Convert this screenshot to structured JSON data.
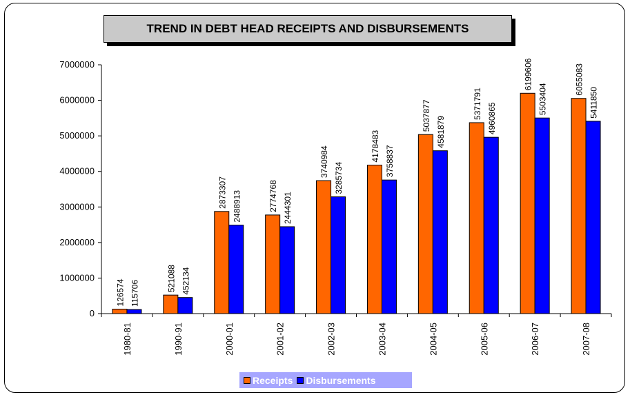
{
  "chart_data": {
    "type": "bar",
    "title": "TREND IN DEBT HEAD RECEIPTS AND DISBURSEMENTS",
    "categories": [
      "1980-81",
      "1990-91",
      "2000-01",
      "2001-02",
      "2002-03",
      "2003-04",
      "2004-05",
      "2005-06",
      "2006-07",
      "2007-08"
    ],
    "series": [
      {
        "name": "Receipts",
        "color": "#ff6600",
        "values": [
          126574,
          521088,
          2873307,
          2774768,
          3740984,
          4178483,
          5037877,
          5371791,
          6199606,
          6055083
        ]
      },
      {
        "name": "Disbursements",
        "color": "#0000ff",
        "values": [
          115706,
          452134,
          2488913,
          2444301,
          3285734,
          3758837,
          4581879,
          4960865,
          5503404,
          5411850
        ]
      }
    ],
    "yticks": [
      "0",
      "1000000",
      "2000000",
      "3000000",
      "4000000",
      "5000000",
      "6000000",
      "7000000"
    ],
    "ylim": [
      0,
      7000000
    ],
    "grid": false,
    "legend": "bottom",
    "legend_background": "#a6a6ff",
    "title_background": "#c9c9c9"
  }
}
